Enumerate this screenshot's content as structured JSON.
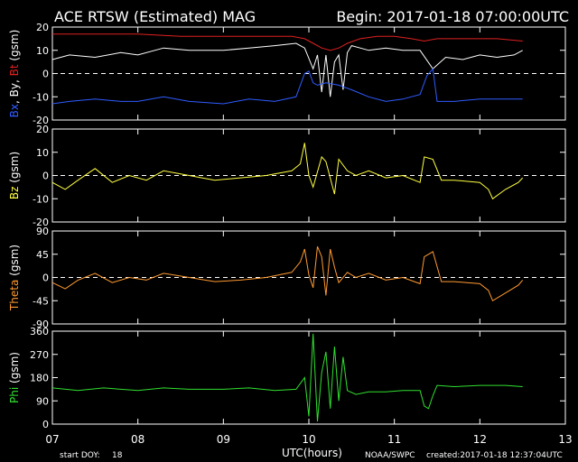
{
  "header": {
    "title": "ACE RTSW (Estimated) MAG",
    "begin": "Begin: 2017-01-18 07:00:00UTC"
  },
  "footer": {
    "start_doy_label": "start DOY:",
    "start_doy_value": "18",
    "xaxis_label": "UTC(hours)",
    "agency": "NOAA/SWPC",
    "created": "created:2017-01-18 12:37:04UTC"
  },
  "colors": {
    "background": "#000000",
    "axes": "#ffffff",
    "bx": "#2f5cff",
    "by": "#ffffff",
    "bt": "#e02020",
    "bz": "#ffff40",
    "theta": "#ff9a30",
    "phi": "#30e030"
  },
  "chart_data": [
    {
      "type": "line",
      "ylabel_parts": [
        {
          "text": "Bx",
          "color": "bx"
        },
        {
          "text": ", By, ",
          "color": "by"
        },
        {
          "text": "Bt",
          "color": "bt"
        },
        {
          "text": " (gsm)",
          "color": "by"
        }
      ],
      "ylim": [
        -20,
        20
      ],
      "yticks": [
        20,
        10,
        0,
        -10,
        -20
      ],
      "zero_line": true,
      "series": [
        {
          "name": "Bt",
          "color": "bt",
          "x": [
            7.0,
            7.5,
            8.0,
            8.5,
            9.0,
            9.5,
            9.8,
            9.95,
            10.05,
            10.15,
            10.25,
            10.35,
            10.45,
            10.6,
            10.8,
            11.0,
            11.2,
            11.35,
            11.5,
            11.7,
            12.0,
            12.2,
            12.5
          ],
          "y": [
            17,
            17,
            17,
            16,
            16,
            16,
            16,
            15,
            13,
            11,
            10,
            11,
            13,
            15,
            16,
            16,
            15,
            14,
            15,
            15,
            15,
            15,
            14
          ]
        },
        {
          "name": "By",
          "color": "by",
          "x": [
            7.0,
            7.2,
            7.5,
            7.8,
            8.0,
            8.3,
            8.6,
            9.0,
            9.3,
            9.6,
            9.85,
            9.95,
            10.05,
            10.1,
            10.15,
            10.2,
            10.25,
            10.3,
            10.35,
            10.4,
            10.45,
            10.5,
            10.6,
            10.7,
            10.9,
            11.1,
            11.3,
            11.45,
            11.6,
            11.8,
            12.0,
            12.2,
            12.4,
            12.5
          ],
          "y": [
            6,
            8,
            7,
            9,
            8,
            11,
            10,
            10,
            11,
            12,
            13,
            11,
            2,
            8,
            -8,
            8,
            -10,
            5,
            8,
            -7,
            9,
            12,
            11,
            10,
            11,
            10,
            10,
            2,
            7,
            6,
            8,
            7,
            8,
            10
          ]
        },
        {
          "name": "Bx",
          "color": "bx",
          "x": [
            7.0,
            7.2,
            7.5,
            7.8,
            8.0,
            8.3,
            8.6,
            9.0,
            9.3,
            9.6,
            9.85,
            9.95,
            10.0,
            10.05,
            10.1,
            10.2,
            10.35,
            10.5,
            10.7,
            10.9,
            11.1,
            11.3,
            11.38,
            11.45,
            11.5,
            11.7,
            12.0,
            12.3,
            12.5
          ],
          "y": [
            -13,
            -12,
            -11,
            -12,
            -12,
            -10,
            -12,
            -13,
            -11,
            -12,
            -10,
            0,
            1,
            -4,
            -5,
            -4,
            -5,
            -7,
            -10,
            -12,
            -11,
            -9,
            -1,
            2,
            -12,
            -12,
            -11,
            -11,
            -11
          ]
        }
      ]
    },
    {
      "type": "line",
      "ylabel_parts": [
        {
          "text": "Bz",
          "color": "bz"
        },
        {
          "text": " (gsm)",
          "color": "by"
        }
      ],
      "ylim": [
        -20,
        20
      ],
      "yticks": [
        20,
        10,
        0,
        -10,
        -20
      ],
      "zero_line": true,
      "series": [
        {
          "name": "Bz",
          "color": "bz",
          "x": [
            7.0,
            7.15,
            7.3,
            7.5,
            7.7,
            7.9,
            8.1,
            8.3,
            8.6,
            8.9,
            9.2,
            9.5,
            9.8,
            9.9,
            9.95,
            10.0,
            10.05,
            10.15,
            10.2,
            10.3,
            10.35,
            10.45,
            10.55,
            10.7,
            10.9,
            11.1,
            11.3,
            11.35,
            11.45,
            11.55,
            11.7,
            12.0,
            12.1,
            12.15,
            12.3,
            12.45,
            12.5
          ],
          "y": [
            -3,
            -6,
            -2,
            3,
            -3,
            0,
            -2,
            2,
            0,
            -2,
            -1,
            0,
            2,
            5,
            14,
            0,
            -5,
            8,
            6,
            -8,
            7,
            2,
            0,
            2,
            -1,
            0,
            -3,
            8,
            7,
            -2,
            -2,
            -3,
            -6,
            -10,
            -6,
            -3,
            -1
          ]
        }
      ]
    },
    {
      "type": "line",
      "ylabel_parts": [
        {
          "text": "Theta",
          "color": "theta"
        },
        {
          "text": " (gsm)",
          "color": "by"
        }
      ],
      "ylim": [
        -90,
        90
      ],
      "yticks": [
        90,
        45,
        0,
        -45,
        -90
      ],
      "zero_line": true,
      "series": [
        {
          "name": "Theta",
          "color": "theta",
          "x": [
            7.0,
            7.15,
            7.3,
            7.5,
            7.7,
            7.9,
            8.1,
            8.3,
            8.6,
            8.9,
            9.2,
            9.5,
            9.8,
            9.9,
            9.95,
            10.0,
            10.05,
            10.1,
            10.15,
            10.2,
            10.25,
            10.3,
            10.35,
            10.45,
            10.55,
            10.7,
            10.9,
            11.1,
            11.3,
            11.35,
            11.45,
            11.55,
            11.7,
            12.0,
            12.1,
            12.15,
            12.3,
            12.45,
            12.5
          ],
          "y": [
            -10,
            -22,
            -5,
            8,
            -10,
            0,
            -5,
            8,
            0,
            -8,
            -5,
            0,
            10,
            30,
            55,
            5,
            -20,
            60,
            40,
            -35,
            55,
            20,
            -10,
            10,
            0,
            8,
            -5,
            0,
            -12,
            40,
            50,
            -8,
            -8,
            -12,
            -25,
            -45,
            -30,
            -15,
            -5
          ]
        }
      ]
    },
    {
      "type": "line",
      "ylabel_parts": [
        {
          "text": "Phi",
          "color": "phi"
        },
        {
          "text": " (gsm)",
          "color": "by"
        }
      ],
      "ylim": [
        0,
        360
      ],
      "yticks": [
        360,
        270,
        180,
        90,
        0
      ],
      "zero_line": false,
      "series": [
        {
          "name": "Phi",
          "color": "phi",
          "x": [
            7.0,
            7.3,
            7.6,
            8.0,
            8.3,
            8.6,
            9.0,
            9.3,
            9.6,
            9.85,
            9.95,
            10.0,
            10.05,
            10.1,
            10.15,
            10.2,
            10.25,
            10.3,
            10.35,
            10.4,
            10.45,
            10.55,
            10.7,
            10.9,
            11.1,
            11.3,
            11.35,
            11.4,
            11.45,
            11.5,
            11.7,
            12.0,
            12.3,
            12.5
          ],
          "y": [
            140,
            130,
            140,
            130,
            140,
            135,
            135,
            140,
            130,
            135,
            180,
            30,
            350,
            10,
            200,
            280,
            60,
            300,
            90,
            260,
            130,
            115,
            125,
            125,
            130,
            130,
            70,
            60,
            110,
            150,
            145,
            150,
            150,
            145
          ]
        }
      ]
    }
  ],
  "x_axis": {
    "xlim": [
      7,
      13
    ],
    "ticks": [
      "07",
      "08",
      "09",
      "10",
      "11",
      "12",
      "13"
    ]
  }
}
